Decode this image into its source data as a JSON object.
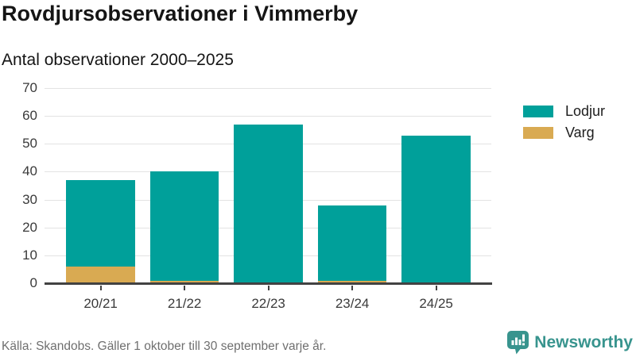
{
  "header": {
    "title": "Rovdjursobservationer i Vimmerby",
    "subtitle": "Antal observationer 2000–2025"
  },
  "chart_data": {
    "type": "bar",
    "stacked": true,
    "categories": [
      "20/21",
      "21/22",
      "22/23",
      "23/24",
      "24/25"
    ],
    "series": [
      {
        "name": "Lodjur",
        "color": "#00a09a",
        "values": [
          31,
          39,
          57,
          27,
          53
        ]
      },
      {
        "name": "Varg",
        "color": "#d9aa52",
        "values": [
          6,
          1,
          0,
          1,
          0
        ]
      }
    ],
    "totals": [
      37,
      40,
      57,
      28,
      53
    ],
    "title": "Antal observationer 2000–2025",
    "xlabel": "",
    "ylabel": "",
    "yticks": [
      0,
      10,
      20,
      30,
      40,
      50,
      60,
      70
    ],
    "ylim": [
      0,
      70
    ],
    "grid": true,
    "legend_position": "right"
  },
  "footer": {
    "source": "Källa: Skandobs. Gäller 1 oktober till 30 september varje år.",
    "brand": "Newsworthy"
  },
  "colors": {
    "lodjur": "#00a09a",
    "varg": "#d9aa52",
    "axis": "#424242",
    "gridline": "#e3e3e3",
    "brand_teal": "#38948e"
  }
}
